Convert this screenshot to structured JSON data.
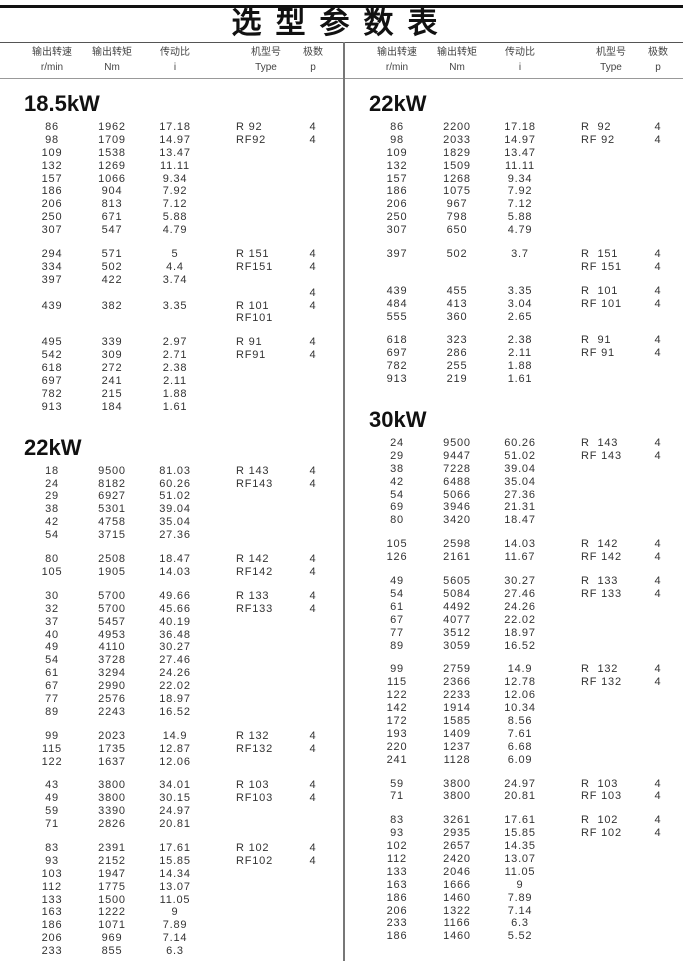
{
  "title": "选型参数表",
  "columns": [
    {
      "cn": "输出转速",
      "unit": "r/min"
    },
    {
      "cn": "输出转矩",
      "unit": "Nm"
    },
    {
      "cn": "传动比",
      "unit": "i"
    },
    {
      "cn": "机型号",
      "unit": "Type"
    },
    {
      "cn": "极数",
      "unit": "p"
    }
  ],
  "left": {
    "sections": [
      {
        "power": "18.5kW",
        "groups": [
          {
            "rows": [
              [
                "86",
                "1962",
                "17.18",
                "R 92",
                "4"
              ],
              [
                "98",
                "1709",
                "14.97",
                "RF92",
                "4"
              ],
              [
                "109",
                "1538",
                "13.47",
                "",
                ""
              ],
              [
                "132",
                "1269",
                "11.11",
                "",
                ""
              ],
              [
                "157",
                "1066",
                "9.34",
                "",
                ""
              ],
              [
                "186",
                "904",
                "7.92",
                "",
                ""
              ],
              [
                "206",
                "813",
                "7.12",
                "",
                ""
              ],
              [
                "250",
                "671",
                "5.88",
                "",
                ""
              ],
              [
                "307",
                "547",
                "4.79",
                "",
                ""
              ]
            ]
          },
          {
            "rows": [
              [
                "294",
                "571",
                "5",
                "R 151",
                "4"
              ],
              [
                "334",
                "502",
                "4.4",
                "RF151",
                "4"
              ],
              [
                "397",
                "422",
                "3.74",
                "",
                ""
              ],
              [
                "",
                "",
                "",
                "",
                "4"
              ],
              [
                "439",
                "382",
                "3.35",
                "R 101",
                "4"
              ],
              [
                "",
                "",
                "",
                "RF101",
                ""
              ]
            ]
          },
          {
            "rows": [
              [
                "495",
                "339",
                "2.97",
                "R 91",
                "4"
              ],
              [
                "542",
                "309",
                "2.71",
                "RF91",
                "4"
              ],
              [
                "618",
                "272",
                "2.38",
                "",
                ""
              ],
              [
                "697",
                "241",
                "2.11",
                "",
                ""
              ],
              [
                "782",
                "215",
                "1.88",
                "",
                ""
              ],
              [
                "913",
                "184",
                "1.61",
                "",
                ""
              ]
            ]
          }
        ]
      },
      {
        "power": "22kW",
        "groups": [
          {
            "rows": [
              [
                "18",
                "9500",
                "81.03",
                "R 143",
                "4"
              ],
              [
                "24",
                "8182",
                "60.26",
                "RF143",
                "4"
              ],
              [
                "29",
                "6927",
                "51.02",
                "",
                ""
              ],
              [
                "38",
                "5301",
                "39.04",
                "",
                ""
              ],
              [
                "42",
                "4758",
                "35.04",
                "",
                ""
              ],
              [
                "54",
                "3715",
                "27.36",
                "",
                ""
              ]
            ]
          },
          {
            "rows": [
              [
                "80",
                "2508",
                "18.47",
                "R 142",
                "4"
              ],
              [
                "105",
                "1905",
                "14.03",
                "RF142",
                "4"
              ]
            ]
          },
          {
            "rows": [
              [
                "30",
                "5700",
                "49.66",
                "R 133",
                "4"
              ],
              [
                "32",
                "5700",
                "45.66",
                "RF133",
                "4"
              ],
              [
                "37",
                "5457",
                "40.19",
                "",
                ""
              ],
              [
                "40",
                "4953",
                "36.48",
                "",
                ""
              ],
              [
                "49",
                "4110",
                "30.27",
                "",
                ""
              ],
              [
                "54",
                "3728",
                "27.46",
                "",
                ""
              ],
              [
                "61",
                "3294",
                "24.26",
                "",
                ""
              ],
              [
                "67",
                "2990",
                "22.02",
                "",
                ""
              ],
              [
                "77",
                "2576",
                "18.97",
                "",
                ""
              ],
              [
                "89",
                "2243",
                "16.52",
                "",
                ""
              ]
            ]
          },
          {
            "rows": [
              [
                "99",
                "2023",
                "14.9",
                "R 132",
                "4"
              ],
              [
                "115",
                "1735",
                "12.87",
                "RF132",
                "4"
              ],
              [
                "122",
                "1637",
                "12.06",
                "",
                ""
              ]
            ]
          },
          {
            "rows": [
              [
                "43",
                "3800",
                "34.01",
                "R 103",
                "4"
              ],
              [
                "49",
                "3800",
                "30.15",
                "RF103",
                "4"
              ],
              [
                "59",
                "3390",
                "24.97",
                "",
                ""
              ],
              [
                "71",
                "2826",
                "20.81",
                "",
                ""
              ]
            ]
          },
          {
            "rows": [
              [
                "83",
                "2391",
                "17.61",
                "R 102",
                "4"
              ],
              [
                "93",
                "2152",
                "15.85",
                "RF102",
                "4"
              ],
              [
                "103",
                "1947",
                "14.34",
                "",
                ""
              ],
              [
                "112",
                "1775",
                "13.07",
                "",
                ""
              ],
              [
                "133",
                "1500",
                "11.05",
                "",
                ""
              ],
              [
                "163",
                "1222",
                "9",
                "",
                ""
              ],
              [
                "186",
                "1071",
                "7.89",
                "",
                ""
              ],
              [
                "206",
                "969",
                "7.14",
                "",
                ""
              ],
              [
                "233",
                "855",
                "6.3",
                "",
                ""
              ]
            ]
          }
        ]
      }
    ]
  },
  "right": {
    "sections": [
      {
        "power": "22kW",
        "groups": [
          {
            "rows": [
              [
                "86",
                "2200",
                "17.18",
                "R  92",
                "4"
              ],
              [
                "98",
                "2033",
                "14.97",
                "RF 92",
                "4"
              ],
              [
                "109",
                "1829",
                "13.47",
                "",
                ""
              ],
              [
                "132",
                "1509",
                "11.11",
                "",
                ""
              ],
              [
                "157",
                "1268",
                "9.34",
                "",
                ""
              ],
              [
                "186",
                "1075",
                "7.92",
                "",
                ""
              ],
              [
                "206",
                "967",
                "7.12",
                "",
                ""
              ],
              [
                "250",
                "798",
                "5.88",
                "",
                ""
              ],
              [
                "307",
                "650",
                "4.79",
                "",
                ""
              ]
            ]
          },
          {
            "rows": [
              [
                "397",
                "502",
                "3.7",
                "R  151",
                "4"
              ],
              [
                "",
                "",
                "",
                "RF 151",
                "4"
              ]
            ]
          },
          {
            "rows": [
              [
                "439",
                "455",
                "3.35",
                "R  101",
                "4"
              ],
              [
                "484",
                "413",
                "3.04",
                "RF 101",
                "4"
              ],
              [
                "555",
                "360",
                "2.65",
                "",
                ""
              ]
            ]
          },
          {
            "rows": [
              [
                "618",
                "323",
                "2.38",
                "R  91",
                "4"
              ],
              [
                "697",
                "286",
                "2.11",
                "RF 91",
                "4"
              ],
              [
                "782",
                "255",
                "1.88",
                "",
                ""
              ],
              [
                "913",
                "219",
                "1.61",
                "",
                ""
              ]
            ]
          }
        ]
      },
      {
        "power": "30kW",
        "groups": [
          {
            "rows": [
              [
                "24",
                "9500",
                "60.26",
                "R  143",
                "4"
              ],
              [
                "29",
                "9447",
                "51.02",
                "RF 143",
                "4"
              ],
              [
                "38",
                "7228",
                "39.04",
                "",
                ""
              ],
              [
                "42",
                "6488",
                "35.04",
                "",
                ""
              ],
              [
                "54",
                "5066",
                "27.36",
                "",
                ""
              ],
              [
                "69",
                "3946",
                "21.31",
                "",
                ""
              ],
              [
                "80",
                "3420",
                "18.47",
                "",
                ""
              ]
            ]
          },
          {
            "rows": [
              [
                "105",
                "2598",
                "14.03",
                "R  142",
                "4"
              ],
              [
                "126",
                "2161",
                "11.67",
                "RF 142",
                "4"
              ]
            ]
          },
          {
            "rows": [
              [
                "49",
                "5605",
                "30.27",
                "R  133",
                "4"
              ],
              [
                "54",
                "5084",
                "27.46",
                "RF 133",
                "4"
              ],
              [
                "61",
                "4492",
                "24.26",
                "",
                ""
              ],
              [
                "67",
                "4077",
                "22.02",
                "",
                ""
              ],
              [
                "77",
                "3512",
                "18.97",
                "",
                ""
              ],
              [
                "89",
                "3059",
                "16.52",
                "",
                ""
              ]
            ]
          },
          {
            "rows": [
              [
                "99",
                "2759",
                "14.9",
                "R  132",
                "4"
              ],
              [
                "115",
                "2366",
                "12.78",
                "RF 132",
                "4"
              ],
              [
                "122",
                "2233",
                "12.06",
                "",
                ""
              ],
              [
                "142",
                "1914",
                "10.34",
                "",
                ""
              ],
              [
                "172",
                "1585",
                "8.56",
                "",
                ""
              ],
              [
                "193",
                "1409",
                "7.61",
                "",
                ""
              ],
              [
                "220",
                "1237",
                "6.68",
                "",
                ""
              ],
              [
                "241",
                "1128",
                "6.09",
                "",
                ""
              ]
            ]
          },
          {
            "rows": [
              [
                "59",
                "3800",
                "24.97",
                "R  103",
                "4"
              ],
              [
                "71",
                "3800",
                "20.81",
                "RF 103",
                "4"
              ]
            ]
          },
          {
            "rows": [
              [
                "83",
                "3261",
                "17.61",
                "R  102",
                "4"
              ],
              [
                "93",
                "2935",
                "15.85",
                "RF 102",
                "4"
              ],
              [
                "102",
                "2657",
                "14.35",
                "",
                ""
              ],
              [
                "112",
                "2420",
                "13.07",
                "",
                ""
              ],
              [
                "133",
                "2046",
                "11.05",
                "",
                ""
              ],
              [
                "163",
                "1666",
                "9",
                "",
                ""
              ],
              [
                "186",
                "1460",
                "7.89",
                "",
                ""
              ],
              [
                "206",
                "1322",
                "7.14",
                "",
                ""
              ],
              [
                "233",
                "1166",
                "6.3",
                "",
                ""
              ],
              [
                "186",
                "1460",
                "5.52",
                "",
                ""
              ]
            ]
          }
        ]
      }
    ]
  }
}
